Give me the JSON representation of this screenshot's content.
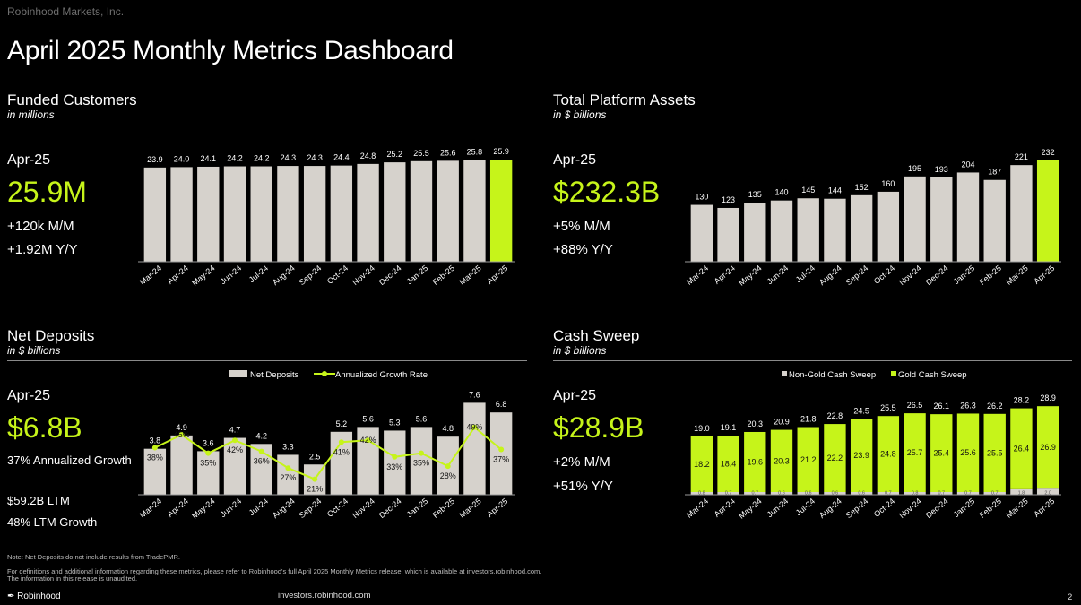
{
  "company": "Robinhood Markets, Inc.",
  "title": "April 2025 Monthly Metrics Dashboard",
  "colors": {
    "accent": "#c6f41a",
    "bar": "#d6d2cc",
    "background": "#000000"
  },
  "funded": {
    "title": "Funded Customers",
    "subtitle": "in millions",
    "period": "Apr-25",
    "value": "25.9M",
    "stat1": "+120k M/M",
    "stat2": "+1.92M Y/Y"
  },
  "assets": {
    "title": "Total Platform Assets",
    "subtitle": "in $ billions",
    "period": "Apr-25",
    "value": "$232.3B",
    "stat1": "+5% M/M",
    "stat2": "+88% Y/Y"
  },
  "deposits": {
    "title": "Net Deposits",
    "subtitle": "in $ billions",
    "period": "Apr-25",
    "value": "$6.8B",
    "stat1": "37% Annualized Growth",
    "stat2": "$59.2B LTM",
    "stat3": "48% LTM Growth"
  },
  "sweep": {
    "title": "Cash Sweep",
    "subtitle": "in $ billions",
    "period": "Apr-25",
    "value": "$28.9B",
    "stat1": "+2% M/M",
    "stat2": "+51% Y/Y"
  },
  "notes": {
    "note1": "Note: Net Deposits do not include results from TradePMR.",
    "note2": "For definitions and additional information regarding these metrics, please refer to Robinhood's full April 2025 Monthly Metrics release, which is available at investors.robinhood.com.",
    "note3": "The information in this release is unaudited."
  },
  "footer": {
    "logo": "Robinhood",
    "url": "investors.robinhood.com",
    "page": "2"
  },
  "chart_data": [
    {
      "id": "funded",
      "type": "bar",
      "title": "Funded Customers",
      "categories": [
        "Mar-24",
        "Apr-24",
        "May-24",
        "Jun-24",
        "Jul-24",
        "Aug-24",
        "Sep-24",
        "Oct-24",
        "Nov-24",
        "Dec-24",
        "Jan-25",
        "Feb-25",
        "Mar-25",
        "Apr-25"
      ],
      "values": [
        23.9,
        24.0,
        24.1,
        24.2,
        24.2,
        24.3,
        24.3,
        24.4,
        24.8,
        25.2,
        25.5,
        25.6,
        25.8,
        25.9
      ],
      "labels": [
        "23.9",
        "24.0",
        "24.1",
        "24.2",
        "24.2",
        "24.3",
        "24.3",
        "24.4",
        "24.8",
        "25.2",
        "25.5",
        "25.6",
        "25.8",
        "25.9"
      ],
      "ylim": [
        0,
        30
      ]
    },
    {
      "id": "assets",
      "type": "bar",
      "title": "Total Platform Assets",
      "categories": [
        "Mar-24",
        "Apr-24",
        "May-24",
        "Jun-24",
        "Jul-24",
        "Aug-24",
        "Sep-24",
        "Oct-24",
        "Nov-24",
        "Dec-24",
        "Jan-25",
        "Feb-25",
        "Mar-25",
        "Apr-25"
      ],
      "values": [
        130,
        123,
        135,
        140,
        145,
        144,
        152,
        160,
        195,
        193,
        204,
        187,
        221,
        232
      ],
      "labels": [
        "130",
        "123",
        "135",
        "140",
        "145",
        "144",
        "152",
        "160",
        "195",
        "193",
        "204",
        "187",
        "221",
        "232"
      ],
      "ylim": [
        0,
        250
      ]
    },
    {
      "id": "deposits",
      "type": "bar",
      "title": "Net Deposits",
      "categories": [
        "Mar-24",
        "Apr-24",
        "May-24",
        "Jun-24",
        "Jul-24",
        "Aug-24",
        "Sep-24",
        "Oct-24",
        "Nov-24",
        "Dec-24",
        "Jan-25",
        "Feb-25",
        "Mar-25",
        "Apr-25"
      ],
      "legend": [
        "Net Deposits",
        "Annualized Growth Rate"
      ],
      "series": [
        {
          "name": "Net Deposits",
          "values": [
            3.8,
            4.9,
            3.6,
            4.7,
            4.2,
            3.3,
            2.5,
            5.2,
            5.6,
            5.3,
            5.6,
            4.8,
            7.6,
            6.8
          ],
          "labels": [
            "3.8",
            "4.9",
            "3.6",
            "4.7",
            "4.2",
            "3.3",
            "2.5",
            "5.2",
            "5.6",
            "5.3",
            "5.6",
            "4.8",
            "7.6",
            "6.8"
          ]
        },
        {
          "name": "Annualized Growth Rate",
          "values": [
            38,
            45,
            35,
            42,
            36,
            27,
            21,
            41,
            42,
            33,
            35,
            28,
            49,
            37
          ],
          "labels": [
            "38%",
            "45%",
            "35%",
            "42%",
            "36%",
            "27%",
            "21%",
            "41%",
            "42%",
            "33%",
            "35%",
            "28%",
            "49%",
            "37%"
          ]
        }
      ],
      "ylim": [
        0,
        8
      ]
    },
    {
      "id": "sweep",
      "type": "bar",
      "title": "Cash Sweep",
      "categories": [
        "Mar-24",
        "Apr-24",
        "May-24",
        "Jun-24",
        "Jul-24",
        "Aug-24",
        "Sep-24",
        "Oct-24",
        "Nov-24",
        "Dec-24",
        "Jan-25",
        "Feb-25",
        "Mar-25",
        "Apr-25"
      ],
      "legend": [
        "Non-Gold Cash Sweep",
        "Gold Cash Sweep"
      ],
      "totals": [
        "19.0",
        "19.1",
        "20.3",
        "20.9",
        "21.8",
        "22.8",
        "24.5",
        "25.5",
        "26.5",
        "26.1",
        "26.3",
        "26.2",
        "28.2",
        "28.9"
      ],
      "series": [
        {
          "name": "Non-Gold Cash Sweep",
          "values": [
            0.8,
            0.7,
            0.7,
            0.6,
            0.6,
            0.6,
            0.6,
            0.7,
            0.8,
            0.7,
            0.7,
            0.7,
            1.8,
            2.0
          ],
          "labels": [
            "0.8",
            "0.7",
            "0.7",
            "0.6",
            "0.6",
            "0.6",
            "0.6",
            "0.7",
            "0.8",
            "0.7",
            "0.7",
            "0.7",
            "1.8",
            "2.0"
          ]
        },
        {
          "name": "Gold Cash Sweep",
          "values": [
            18.2,
            18.4,
            19.6,
            20.3,
            21.2,
            22.2,
            23.9,
            24.8,
            25.7,
            25.4,
            25.6,
            25.5,
            26.4,
            26.9
          ],
          "labels": [
            "18.2",
            "18.4",
            "19.6",
            "20.3",
            "21.2",
            "22.2",
            "23.9",
            "24.8",
            "25.7",
            "25.4",
            "25.6",
            "25.5",
            "26.4",
            "26.9"
          ]
        }
      ],
      "ylim": [
        0,
        31
      ]
    }
  ]
}
